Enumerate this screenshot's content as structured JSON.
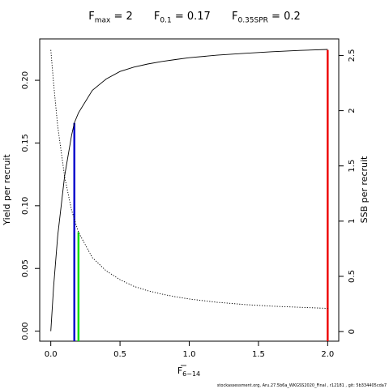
{
  "chart_data": {
    "type": "line",
    "title_terms": [
      {
        "symbol": "F",
        "sub": "max",
        "eq": "= 2"
      },
      {
        "symbol": "F",
        "sub": "0.1",
        "eq": "= 0.17"
      },
      {
        "symbol": "F",
        "sub": "0.35SPR",
        "eq": "= 0.2"
      }
    ],
    "xlabel": "F",
    "xlabel_sub": "6−14",
    "ylabel": "Yield per recruit",
    "y2label": "SSB per recruit",
    "xlim": [
      -0.08,
      2.08
    ],
    "ylim": [
      -0.008,
      0.233
    ],
    "y2lim": [
      -0.087,
      2.65
    ],
    "xticks": [
      0,
      0.5,
      1,
      1.5,
      2
    ],
    "xtick_labels": [
      "0.0",
      "0.5",
      "1.0",
      "1.5",
      "2.0"
    ],
    "yticks": [
      0,
      0.05,
      0.1,
      0.15,
      0.2
    ],
    "ytick_labels": [
      "0.00",
      "0.05",
      "0.10",
      "0.15",
      "0.20"
    ],
    "y2ticks": [
      0,
      0.5,
      1,
      1.5,
      2,
      2.5
    ],
    "y2tick_labels": [
      "0",
      "0.5",
      "1",
      "1.5",
      "2",
      "2.5"
    ],
    "grid": false,
    "series": [
      {
        "name": "Yield per recruit",
        "axis": "left",
        "style": "solid",
        "color": "#000000",
        "x": [
          0,
          0.02,
          0.05,
          0.1,
          0.15,
          0.17,
          0.2,
          0.3,
          0.4,
          0.5,
          0.6,
          0.7,
          0.8,
          0.9,
          1.0,
          1.2,
          1.4,
          1.6,
          1.8,
          2.0
        ],
        "y": [
          0,
          0.035,
          0.076,
          0.124,
          0.156,
          0.166,
          0.174,
          0.192,
          0.201,
          0.207,
          0.2105,
          0.213,
          0.215,
          0.2165,
          0.218,
          0.22,
          0.2215,
          0.2228,
          0.2238,
          0.2246
        ]
      },
      {
        "name": "SSB per recruit",
        "axis": "right",
        "style": "dotted",
        "color": "#000000",
        "x": [
          0,
          0.02,
          0.05,
          0.1,
          0.15,
          0.2,
          0.3,
          0.4,
          0.5,
          0.6,
          0.7,
          0.8,
          0.9,
          1.0,
          1.2,
          1.4,
          1.6,
          1.8,
          2.0
        ],
        "y": [
          2.55,
          2.25,
          1.86,
          1.4,
          1.1,
          0.9,
          0.67,
          0.55,
          0.47,
          0.41,
          0.37,
          0.34,
          0.315,
          0.295,
          0.265,
          0.245,
          0.23,
          0.22,
          0.21
        ]
      }
    ],
    "reference_lines": [
      {
        "name": "F0.1",
        "x": 0.17,
        "y": 0.166,
        "axis": "left",
        "color": "#0000cc"
      },
      {
        "name": "F0.35SPR",
        "x": 0.2,
        "y": 0.9,
        "axis": "right",
        "color": "#00dd00"
      },
      {
        "name": "Fmax",
        "x": 2.0,
        "y": 2.55,
        "axis": "right",
        "color": "#ee0000"
      }
    ]
  },
  "footer_text": "stockassessment.org, Aru.27.5b6a_WKGSS2020_Final , r12181 , git: 5b334405cda7"
}
